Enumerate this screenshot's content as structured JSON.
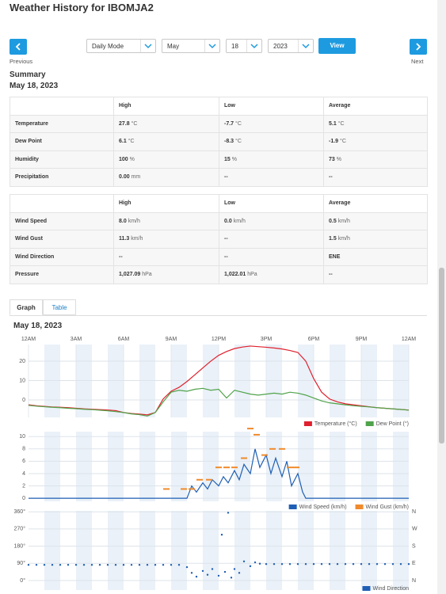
{
  "header": {
    "title": "Weather History for IBOMJA2"
  },
  "nav": {
    "previous": "Previous",
    "next": "Next",
    "selects": [
      "Daily Mode",
      "May",
      "18",
      "2023"
    ],
    "view": "View"
  },
  "summary": {
    "title": "Summary",
    "date": "May 18, 2023",
    "tables": [
      {
        "columns": [
          "High",
          "Low",
          "Average"
        ],
        "rows": [
          {
            "label": "Temperature",
            "cells": [
              {
                "value": "27.8",
                "unit": "°C"
              },
              {
                "value": "-7.7",
                "unit": "°C"
              },
              {
                "value": "5.1",
                "unit": "°C"
              }
            ]
          },
          {
            "label": "Dew Point",
            "cells": [
              {
                "value": "6.1",
                "unit": "°C"
              },
              {
                "value": "-8.3",
                "unit": "°C"
              },
              {
                "value": "-1.9",
                "unit": "°C"
              }
            ]
          },
          {
            "label": "Humidity",
            "cells": [
              {
                "value": "100",
                "unit": "%"
              },
              {
                "value": "15",
                "unit": "%"
              },
              {
                "value": "73",
                "unit": "%"
              }
            ]
          },
          {
            "label": "Precipitation",
            "cells": [
              {
                "value": "0.00",
                "unit": "mm"
              },
              "--",
              "--"
            ]
          }
        ]
      },
      {
        "columns": [
          "High",
          "Low",
          "Average"
        ],
        "rows": [
          {
            "label": "Wind Speed",
            "cells": [
              {
                "value": "8.0",
                "unit": "km/h"
              },
              {
                "value": "0.0",
                "unit": "km/h"
              },
              {
                "value": "0.5",
                "unit": "km/h"
              }
            ]
          },
          {
            "label": "Wind Gust",
            "cells": [
              {
                "value": "11.3",
                "unit": "km/h"
              },
              "--",
              {
                "value": "1.5",
                "unit": "km/h"
              }
            ]
          },
          {
            "label": "Wind Direction",
            "cells": [
              "--",
              "--",
              "ENE"
            ]
          },
          {
            "label": "Pressure",
            "cells": [
              {
                "value": "1,027.09",
                "unit": "hPa"
              },
              {
                "value": "1,022.01",
                "unit": "hPa"
              },
              "--"
            ]
          }
        ]
      }
    ]
  },
  "tabs": [
    "Graph",
    "Table"
  ],
  "graph": {
    "date": "May 18, 2023"
  },
  "chart_data": [
    {
      "type": "line",
      "x": [
        0,
        0.5,
        1,
        1.5,
        2,
        2.5,
        3,
        3.5,
        4,
        4.5,
        5,
        5.5,
        6,
        6.5,
        7,
        7.5,
        8,
        8.5,
        9,
        9.5,
        10,
        10.5,
        11,
        11.5,
        12,
        12.5,
        13,
        13.5,
        14,
        14.5,
        15,
        15.5,
        16,
        16.5,
        17,
        17.5,
        18,
        18.5,
        19,
        19.5,
        20,
        20.5,
        21,
        21.5,
        22,
        22.5,
        23,
        23.5,
        24
      ],
      "xlim": [
        0,
        24
      ],
      "xticks": [
        {
          "value": 0,
          "label": "12AM"
        },
        {
          "value": 3,
          "label": "3AM"
        },
        {
          "value": 6,
          "label": "6AM"
        },
        {
          "value": 9,
          "label": "9AM"
        },
        {
          "value": 12,
          "label": "12PM"
        },
        {
          "value": 15,
          "label": "3PM"
        },
        {
          "value": 18,
          "label": "6PM"
        },
        {
          "value": 21,
          "label": "9PM"
        },
        {
          "value": 24,
          "label": "12AM"
        }
      ],
      "ylim": [
        -9,
        28.6
      ],
      "yticks": [
        0,
        10,
        20
      ],
      "grid": true,
      "legend": "bottom-right",
      "series": [
        {
          "name": "Temperature (°C)",
          "color": "#e0202e",
          "values": [
            -2.5,
            -3.0,
            -3.3,
            -3.6,
            -3.8,
            -4.0,
            -4.3,
            -4.6,
            -4.8,
            -5.0,
            -5.2,
            -5.5,
            -6.5,
            -7.0,
            -7.3,
            -7.7,
            -6.5,
            0.5,
            4.5,
            6.5,
            9.5,
            13,
            16.5,
            20,
            23,
            25,
            26.5,
            27.3,
            27.8,
            27.5,
            27.2,
            26.8,
            26.3,
            25.5,
            24.5,
            20,
            11,
            4,
            0.5,
            -1,
            -2,
            -2.5,
            -3,
            -3.5,
            -4,
            -4.3,
            -4.6,
            -4.9,
            -5.2
          ]
        },
        {
          "name": "Dew Point (°)",
          "color": "#4fa34a",
          "values": [
            -2.8,
            -3.2,
            -3.5,
            -3.8,
            -4.0,
            -4.3,
            -4.5,
            -4.8,
            -5.0,
            -5.3,
            -5.6,
            -6.0,
            -6.5,
            -7.2,
            -7.6,
            -8.3,
            -6.5,
            -1,
            4,
            5,
            4.5,
            5.5,
            6,
            5,
            5.5,
            1,
            5,
            4,
            3,
            2.5,
            3,
            3.5,
            3,
            4,
            3.5,
            2.5,
            1,
            -0.5,
            -1.5,
            -2,
            -2.5,
            -3,
            -3.3,
            -3.6,
            -4,
            -4.3,
            -4.6,
            -4.9,
            -5.3
          ]
        }
      ]
    },
    {
      "type": "line",
      "xlim": [
        0,
        24
      ],
      "ylim": [
        -0.5,
        10.8
      ],
      "yticks": [
        0,
        2,
        4,
        6,
        8,
        10
      ],
      "grid": true,
      "legend": "bottom-right",
      "series": [
        {
          "name": "Wind Speed (km/h)",
          "color": "#1f5fb4",
          "type": "line",
          "x": [
            0,
            10,
            10.3,
            10.6,
            11,
            11.3,
            11.6,
            12,
            12.3,
            12.6,
            13,
            13.3,
            13.6,
            14,
            14.3,
            14.6,
            15,
            15.3,
            15.6,
            16,
            16.3,
            16.6,
            17,
            17.3,
            17.5,
            24
          ],
          "values": [
            0,
            0,
            2,
            1,
            2.5,
            1.5,
            3,
            2,
            3.5,
            2.5,
            4.5,
            3,
            5.5,
            4,
            8,
            5,
            7,
            4,
            6.5,
            3.5,
            6,
            2,
            4,
            1,
            0,
            0
          ]
        },
        {
          "name": "Wind Gust (km/h)",
          "color": "#f08a2c",
          "type": "scatter",
          "marker": "dash",
          "x": [
            8.7,
            9.8,
            10.3,
            10.8,
            11.4,
            12,
            12.5,
            13,
            13.6,
            14,
            14.4,
            14.9,
            15.4,
            16,
            16.5,
            16.9
          ],
          "values": [
            1.5,
            1.5,
            1.5,
            3,
            3,
            5,
            5,
            5,
            6.5,
            11.3,
            10.3,
            7,
            8,
            8,
            5,
            5
          ]
        }
      ]
    },
    {
      "type": "scatter",
      "xlim": [
        0,
        24
      ],
      "ylim": [
        -50,
        365
      ],
      "yticks": [
        {
          "value": 0,
          "label": "0°"
        },
        {
          "value": 90,
          "label": "90°"
        },
        {
          "value": 180,
          "label": "180°"
        },
        {
          "value": 270,
          "label": "270°"
        },
        {
          "value": 360,
          "label": "360°"
        }
      ],
      "y2lim": [
        -50,
        365
      ],
      "y2ticks": [
        {
          "value": 0,
          "label": "N"
        },
        {
          "value": 90,
          "label": "E"
        },
        {
          "value": 180,
          "label": "S"
        },
        {
          "value": 270,
          "label": "W"
        },
        {
          "value": 360,
          "label": "N"
        }
      ],
      "grid": true,
      "legend": "bottom-right",
      "series": [
        {
          "name": "Wind Direction",
          "color": "#1f5fb4",
          "x": [
            0,
            0.5,
            1,
            1.5,
            2,
            2.5,
            3,
            3.5,
            4,
            4.5,
            5,
            5.5,
            6,
            6.5,
            7,
            7.5,
            8,
            8.5,
            9,
            9.5,
            10,
            10.3,
            10.6,
            11,
            11.3,
            11.6,
            12,
            12.2,
            12.4,
            12.6,
            12.8,
            13,
            13.3,
            13.6,
            14,
            14.3,
            14.6,
            15,
            15.5,
            16,
            16.5,
            17,
            17.5,
            18,
            18.5,
            19,
            19.5,
            20,
            20.5,
            21,
            21.5,
            22,
            22.5,
            23,
            23.5,
            24
          ],
          "values": [
            82,
            82,
            82,
            82,
            82,
            82,
            82,
            82,
            82,
            82,
            82,
            82,
            82,
            82,
            82,
            82,
            82,
            82,
            82,
            82,
            70,
            40,
            20,
            50,
            30,
            60,
            25,
            240,
            45,
            355,
            15,
            60,
            40,
            100,
            75,
            95,
            88,
            86,
            86,
            86,
            86,
            86,
            86,
            86,
            86,
            86,
            86,
            86,
            86,
            86,
            86,
            86,
            86,
            86,
            86,
            86
          ]
        }
      ]
    }
  ]
}
